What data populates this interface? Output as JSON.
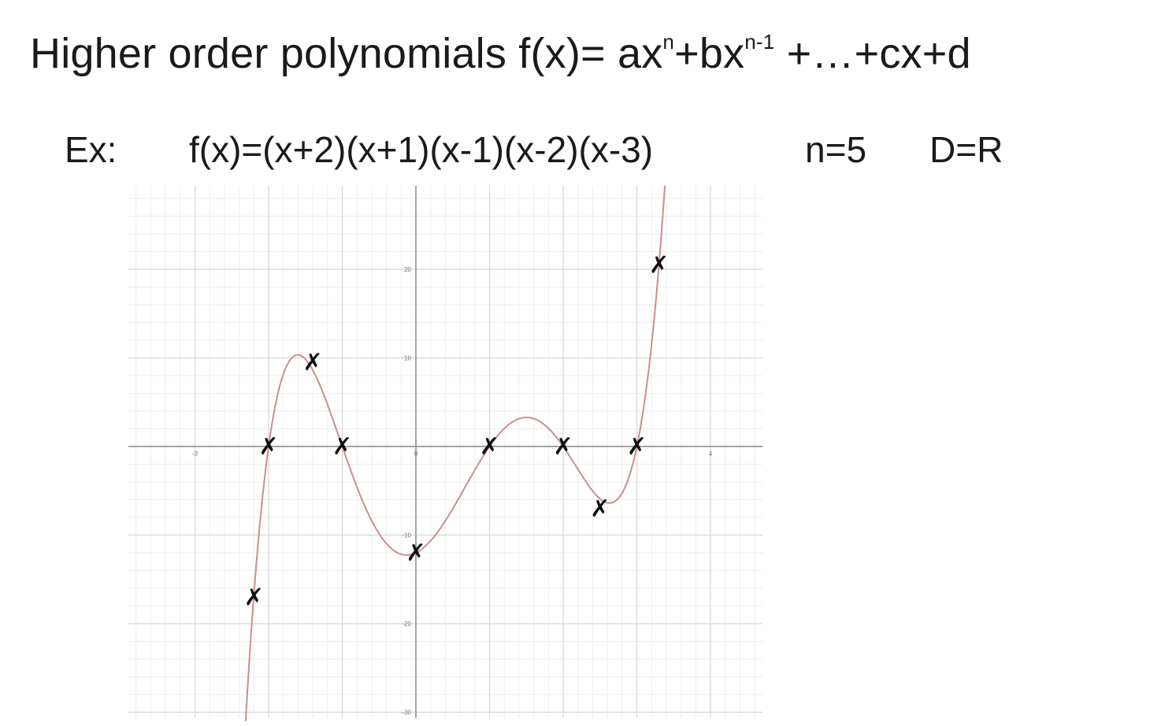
{
  "title": {
    "prefix": "Higher order polynomials f(x)= ax",
    "sup1": "n",
    "mid": "+bx",
    "sup2": "n-1",
    "suffix": " +…+cx+d"
  },
  "example": {
    "label": "Ex:",
    "formula": "f(x)=(x+2)(x+1)(x-1)(x-2)(x-3)",
    "degree": "n=5",
    "domain": "D=R"
  },
  "chart_data": {
    "type": "line",
    "function": "(x+2)(x+1)(x-1)(x-2)(x-3)",
    "xlim": [
      -3.8,
      4.7
    ],
    "ylim": [
      -30,
      30
    ],
    "grid": true,
    "x_ticks": [
      {
        "value": -3,
        "label": "-3"
      },
      {
        "value": 0,
        "label": "0"
      },
      {
        "value": 4,
        "label": "4"
      }
    ],
    "y_ticks": [
      {
        "value": 20,
        "label": "20"
      },
      {
        "value": 10,
        "label": "10"
      },
      {
        "value": -10,
        "label": "-10"
      },
      {
        "value": -20,
        "label": "-20"
      },
      {
        "value": -30,
        "label": "-30"
      }
    ],
    "curve_color": "#c98f8f",
    "marked_points": [
      {
        "x": -2.2,
        "y": -17
      },
      {
        "x": -2.0,
        "y": 0
      },
      {
        "x": -1.4,
        "y": 9.5
      },
      {
        "x": -1.0,
        "y": 0
      },
      {
        "x": 0.0,
        "y": -12
      },
      {
        "x": 1.0,
        "y": 0
      },
      {
        "x": 2.0,
        "y": 0
      },
      {
        "x": 2.5,
        "y": -7
      },
      {
        "x": 3.0,
        "y": 0
      },
      {
        "x": 3.3,
        "y": 20.5
      }
    ],
    "marker_symbol": "✗"
  }
}
